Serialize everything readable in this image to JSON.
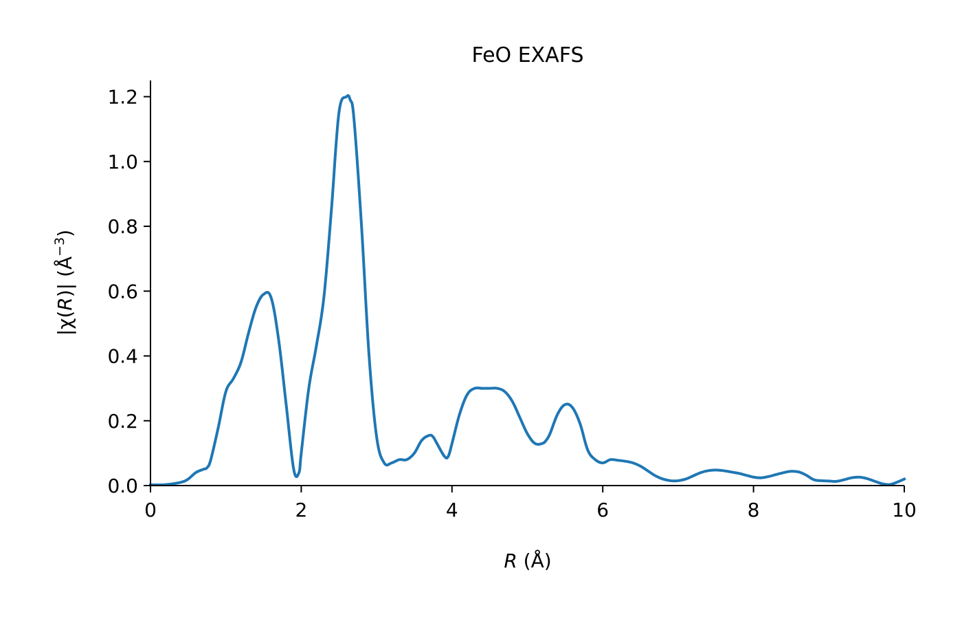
{
  "chart_data": {
    "type": "line",
    "title": "FeO EXAFS",
    "xlabel_var": "R",
    "xlabel_unit": " (Å)",
    "ylabel_pre": "|χ(",
    "ylabel_var": "R",
    "ylabel_post": ")| (Å",
    "ylabel_sup": "−3",
    "ylabel_close": ")",
    "xlim": [
      0,
      10
    ],
    "ylim": [
      0,
      1.25
    ],
    "xticks": [
      0,
      2,
      4,
      6,
      8,
      10
    ],
    "xtick_labels": [
      "0",
      "2",
      "4",
      "6",
      "8",
      "10"
    ],
    "yticks": [
      0.0,
      0.2,
      0.4,
      0.6,
      0.8,
      1.0,
      1.2
    ],
    "ytick_labels": [
      "0.0",
      "0.2",
      "0.4",
      "0.6",
      "0.8",
      "1.0",
      "1.2"
    ],
    "grid": false,
    "line_color": "#1f77b4",
    "series": [
      {
        "x": [
          0.0,
          0.2,
          0.4,
          0.5,
          0.6,
          0.7,
          0.75,
          0.8,
          0.9,
          1.0,
          1.1,
          1.2,
          1.3,
          1.4,
          1.5,
          1.6,
          1.7,
          1.8,
          1.9,
          1.97,
          2.0,
          2.1,
          2.2,
          2.3,
          2.4,
          2.5,
          2.6,
          2.65,
          2.7,
          2.8,
          2.9,
          3.0,
          3.1,
          3.2,
          3.3,
          3.4,
          3.5,
          3.6,
          3.7,
          3.75,
          3.8,
          3.9,
          3.95,
          4.0,
          4.1,
          4.2,
          4.3,
          4.4,
          4.5,
          4.6,
          4.7,
          4.8,
          4.9,
          5.0,
          5.1,
          5.2,
          5.25,
          5.3,
          5.4,
          5.5,
          5.6,
          5.7,
          5.8,
          5.9,
          6.0,
          6.1,
          6.2,
          6.3,
          6.4,
          6.5,
          6.6,
          6.7,
          6.8,
          6.9,
          7.0,
          7.1,
          7.2,
          7.3,
          7.4,
          7.5,
          7.6,
          7.7,
          7.8,
          7.9,
          8.0,
          8.1,
          8.2,
          8.3,
          8.4,
          8.5,
          8.6,
          8.7,
          8.8,
          8.9,
          9.0,
          9.1,
          9.2,
          9.3,
          9.4,
          9.5,
          9.6,
          9.7,
          9.8,
          9.9,
          10.0
        ],
        "y": [
          0.002,
          0.003,
          0.01,
          0.02,
          0.04,
          0.05,
          0.055,
          0.08,
          0.18,
          0.29,
          0.33,
          0.38,
          0.47,
          0.55,
          0.59,
          0.58,
          0.45,
          0.25,
          0.05,
          0.04,
          0.1,
          0.3,
          0.43,
          0.58,
          0.85,
          1.15,
          1.2,
          1.19,
          1.13,
          0.8,
          0.4,
          0.15,
          0.07,
          0.07,
          0.08,
          0.08,
          0.1,
          0.14,
          0.155,
          0.15,
          0.13,
          0.09,
          0.09,
          0.13,
          0.22,
          0.28,
          0.3,
          0.3,
          0.3,
          0.3,
          0.29,
          0.26,
          0.21,
          0.16,
          0.13,
          0.13,
          0.14,
          0.16,
          0.22,
          0.25,
          0.24,
          0.19,
          0.11,
          0.08,
          0.07,
          0.08,
          0.078,
          0.075,
          0.07,
          0.06,
          0.045,
          0.03,
          0.02,
          0.015,
          0.015,
          0.02,
          0.03,
          0.04,
          0.046,
          0.048,
          0.046,
          0.042,
          0.038,
          0.032,
          0.026,
          0.024,
          0.028,
          0.034,
          0.04,
          0.044,
          0.042,
          0.032,
          0.018,
          0.015,
          0.014,
          0.013,
          0.018,
          0.024,
          0.026,
          0.022,
          0.014,
          0.006,
          0.003,
          0.01,
          0.02
        ]
      }
    ]
  }
}
